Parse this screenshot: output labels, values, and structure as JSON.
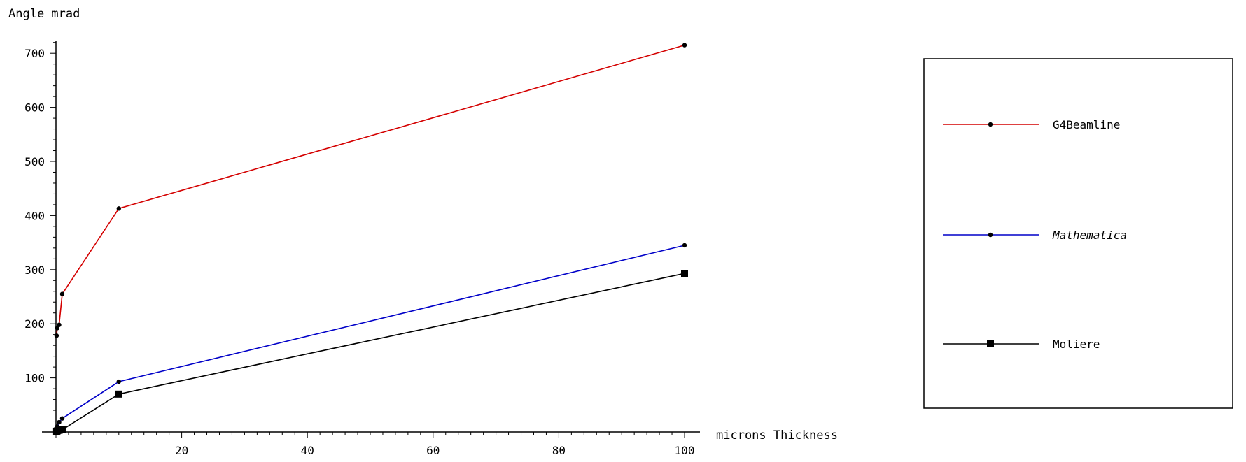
{
  "chart_data": {
    "type": "line",
    "ylabel": "Angle mrad",
    "xlabel": "microns Thickness",
    "xlim": [
      0,
      100
    ],
    "ylim": [
      0,
      700
    ],
    "x_ticks": [
      20,
      40,
      60,
      80,
      100
    ],
    "y_ticks": [
      100,
      200,
      300,
      400,
      500,
      600,
      700
    ],
    "grid": false,
    "legend_position": "right",
    "series": [
      {
        "name": "G4Beamline",
        "color": "#d40000",
        "marker": "small-star",
        "points": [
          [
            0.1,
            178
          ],
          [
            0.2,
            192
          ],
          [
            0.5,
            198
          ],
          [
            1,
            255
          ],
          [
            10,
            413
          ],
          [
            100,
            715
          ]
        ]
      },
      {
        "name": "Mathematica",
        "color": "#0000c8",
        "marker": "small-star",
        "points": [
          [
            0.1,
            5
          ],
          [
            0.2,
            10
          ],
          [
            0.5,
            18
          ],
          [
            1,
            25
          ],
          [
            10,
            93
          ],
          [
            100,
            345
          ]
        ]
      },
      {
        "name": "Moliere",
        "color": "#000000",
        "marker": "filled-square",
        "points": [
          [
            0.1,
            1
          ],
          [
            0.2,
            2
          ],
          [
            0.5,
            3
          ],
          [
            1,
            4
          ],
          [
            10,
            70
          ],
          [
            100,
            293
          ]
        ]
      }
    ]
  }
}
